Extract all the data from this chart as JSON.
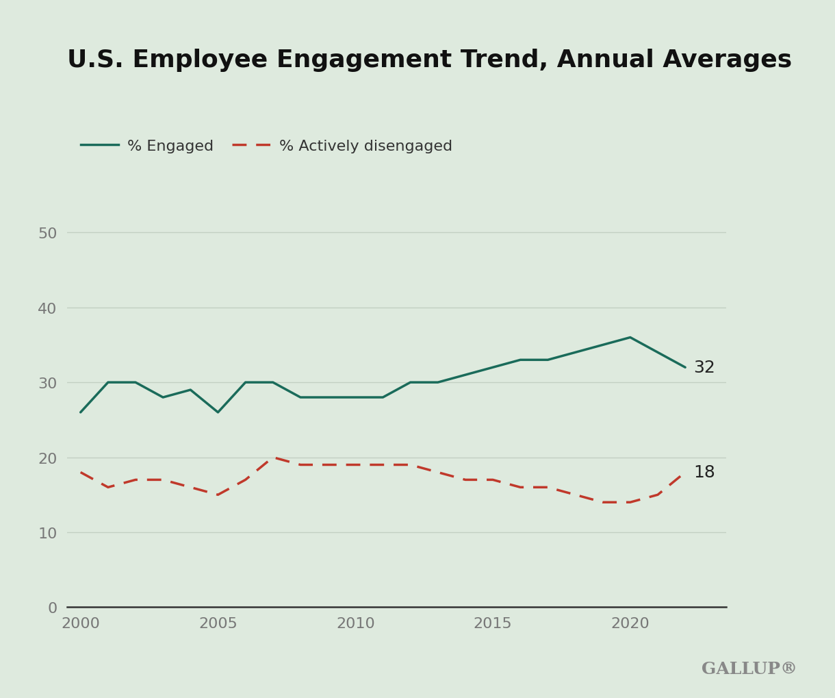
{
  "title": "U.S. Employee Engagement Trend, Annual Averages",
  "background_color": "#deeade",
  "engaged_color": "#1a6b5a",
  "disengaged_color": "#c0392b",
  "years_engaged": [
    2000,
    2001,
    2002,
    2003,
    2004,
    2005,
    2006,
    2007,
    2008,
    2009,
    2010,
    2011,
    2012,
    2013,
    2014,
    2015,
    2016,
    2017,
    2018,
    2019,
    2020,
    2021,
    2022
  ],
  "engaged_values": [
    26,
    30,
    30,
    28,
    29,
    26,
    30,
    30,
    28,
    28,
    28,
    28,
    30,
    30,
    31,
    32,
    33,
    33,
    34,
    35,
    36,
    34,
    32
  ],
  "years_disengaged": [
    2000,
    2001,
    2002,
    2003,
    2004,
    2005,
    2006,
    2007,
    2008,
    2009,
    2010,
    2011,
    2012,
    2013,
    2014,
    2015,
    2016,
    2017,
    2018,
    2019,
    2020,
    2021,
    2022
  ],
  "disengaged_values": [
    18,
    16,
    17,
    17,
    16,
    15,
    17,
    20,
    19,
    19,
    19,
    19,
    19,
    18,
    17,
    17,
    16,
    16,
    15,
    14,
    14,
    15,
    18
  ],
  "ylim": [
    0,
    55
  ],
  "yticks": [
    0,
    10,
    20,
    30,
    40,
    50
  ],
  "xticks": [
    2000,
    2005,
    2010,
    2015,
    2020
  ],
  "xlim": [
    1999.5,
    2023.5
  ],
  "legend_engaged": "% Engaged",
  "legend_disengaged": "% Actively disengaged",
  "label_engaged": "32",
  "label_disengaged": "18",
  "gallup_text": "GALLUP®",
  "title_fontsize": 26,
  "axis_fontsize": 16,
  "label_fontsize": 18,
  "legend_fontsize": 16,
  "grid_color": "#c2d0c2",
  "tick_color": "#777777",
  "title_color": "#111111",
  "gallup_color": "#888888",
  "bottom_spine_color": "#333333"
}
